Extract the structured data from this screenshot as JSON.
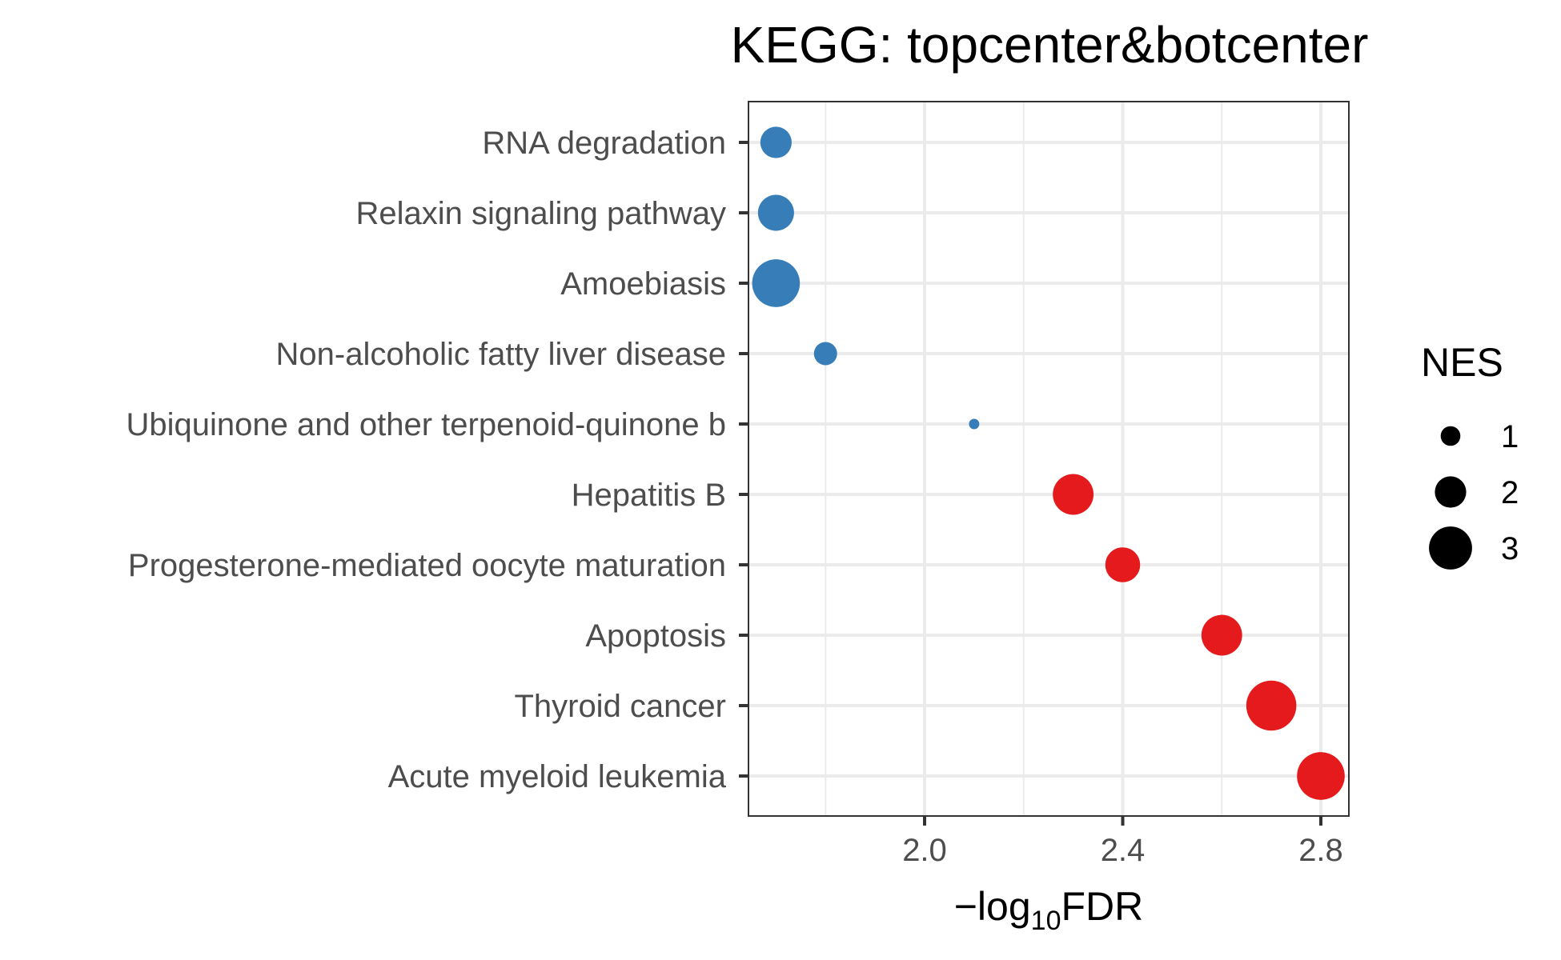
{
  "chart_data": {
    "type": "scatter",
    "title": "KEGG: topcenter&botcenter",
    "xlabel": {
      "prefix": "−log",
      "subscript": "10",
      "suffix": "FDR"
    },
    "ylabel": "",
    "xlim": [
      1.65,
      2.85
    ],
    "xticks": [
      2.0,
      2.4,
      2.8
    ],
    "xtick_labels": [
      "2.0",
      "2.4",
      "2.8"
    ],
    "grid": true,
    "categories": [
      "RNA degradation",
      "Relaxin signaling pathway",
      "Amoebiasis",
      "Non-alcoholic fatty liver disease",
      "Ubiquinone and other terpenoid-quinone b",
      "Hepatitis B",
      "Progesterone-mediated oocyte maturation",
      "Apoptosis",
      "Thyroid cancer",
      "Acute myeloid leukemia"
    ],
    "points": [
      {
        "category": "RNA degradation",
        "x": 1.7,
        "nes": 2.0,
        "color": "#377eb8"
      },
      {
        "category": "Relaxin signaling pathway",
        "x": 1.7,
        "nes": 2.4,
        "color": "#377eb8"
      },
      {
        "category": "Amoebiasis",
        "x": 1.7,
        "nes": 3.4,
        "color": "#377eb8"
      },
      {
        "category": "Non-alcoholic fatty liver disease",
        "x": 1.8,
        "nes": 1.3,
        "color": "#377eb8"
      },
      {
        "category": "Ubiquinone and other terpenoid-quinone b",
        "x": 2.1,
        "nes": 0.2,
        "color": "#377eb8"
      },
      {
        "category": "Hepatitis B",
        "x": 2.3,
        "nes": 2.8,
        "color": "#e41a1c"
      },
      {
        "category": "Progesterone-mediated oocyte maturation",
        "x": 2.4,
        "nes": 2.3,
        "color": "#e41a1c"
      },
      {
        "category": "Apoptosis",
        "x": 2.6,
        "nes": 2.8,
        "color": "#e41a1c"
      },
      {
        "category": "Thyroid cancer",
        "x": 2.7,
        "nes": 3.6,
        "color": "#e41a1c"
      },
      {
        "category": "Acute myeloid leukemia",
        "x": 2.8,
        "nes": 3.4,
        "color": "#e41a1c"
      }
    ],
    "legend": {
      "title": "NES",
      "position": "right",
      "entries": [
        {
          "label": "1",
          "nes": 1
        },
        {
          "label": "2",
          "nes": 2
        },
        {
          "label": "3",
          "nes": 3
        }
      ],
      "color": "#000000"
    },
    "colors": {
      "down": "#377eb8",
      "up": "#e41a1c"
    }
  }
}
